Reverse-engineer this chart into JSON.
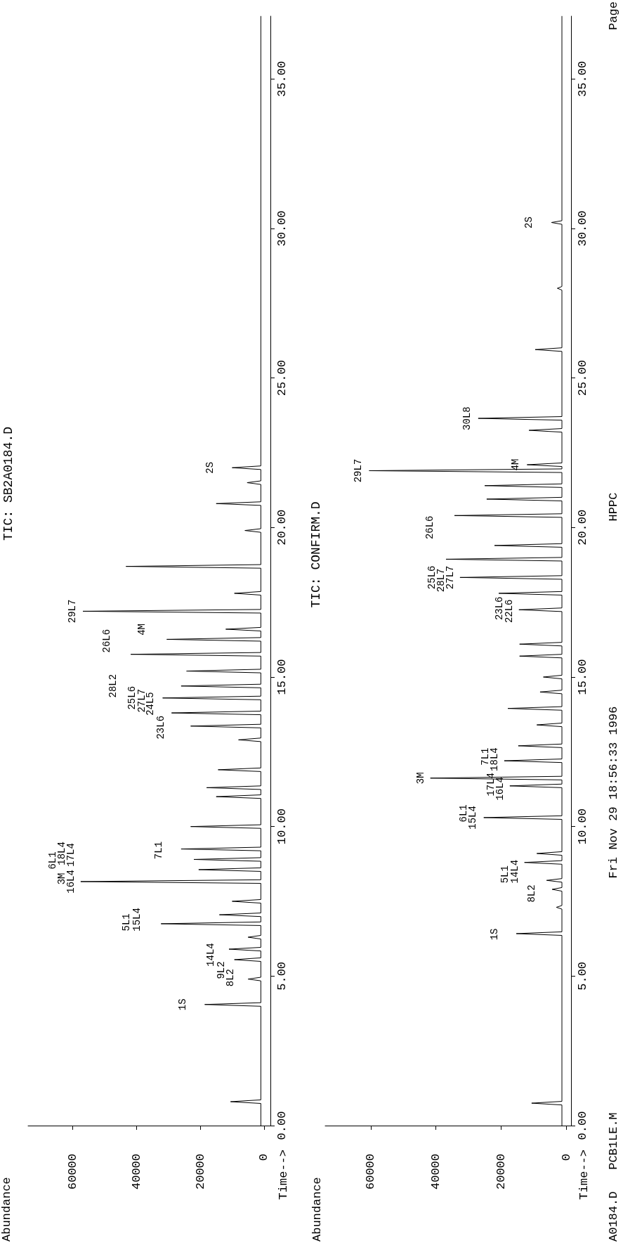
{
  "chart_data": [
    {
      "type": "line",
      "title": "TIC: SB2A0184.D",
      "ylabel": "Time-->",
      "xlim": [
        74000,
        -2000
      ],
      "xticks": [
        0,
        20000,
        40000,
        60000
      ],
      "ylim": [
        0,
        37.1
      ],
      "yticks": [
        {
          "value": 0,
          "label": "0.00"
        },
        {
          "value": 5,
          "label": "5.00"
        },
        {
          "value": 10,
          "label": "10.00"
        },
        {
          "value": 15,
          "label": "15.00"
        },
        {
          "value": 20,
          "label": "20.00"
        },
        {
          "value": 25,
          "label": "25.00"
        },
        {
          "value": 30,
          "label": "30.00"
        },
        {
          "value": 35,
          "label": "35.00"
        }
      ],
      "marker": "none",
      "line_style": "solid",
      "series": [
        {
          "color": "#000000",
          "x": [
            1000,
            1000,
            10500,
            1000,
            1000,
            18600,
            1000,
            1000,
            5000,
            1000,
            1000,
            9300,
            1000,
            1000,
            11000,
            1000,
            1000,
            5000,
            1000,
            1000,
            32300,
            1000,
            1000,
            14000,
            1000,
            1000,
            10000,
            1000,
            1000,
            57500,
            1000,
            1000,
            20500,
            1000,
            1000,
            22000,
            1000,
            1000,
            26000,
            1000,
            1000,
            23000,
            1000,
            1000,
            15000,
            1000,
            1000,
            18000,
            1000,
            1000,
            14400,
            1000,
            1000,
            8000,
            1000,
            1000,
            23000,
            1000,
            1000,
            29000,
            1000,
            1000,
            31800,
            1000,
            1000,
            26000,
            1000,
            1000,
            24300,
            1000,
            1000,
            41800,
            1000,
            1000,
            30500,
            1000,
            1000,
            12000,
            1000,
            1000,
            56800,
            1000,
            1000,
            9300,
            1000,
            1000,
            43300,
            1000,
            1000,
            6000,
            1000,
            1000,
            15000,
            1000,
            1000,
            5300,
            1000,
            1000,
            10000,
            1000,
            1000
          ],
          "values": [
            0,
            0.74,
            0.8,
            0.86,
            3.99,
            4.05,
            4.11,
            4.84,
            4.9,
            4.96,
            5.49,
            5.55,
            5.61,
            5.84,
            5.9,
            5.96,
            6.24,
            6.3,
            6.36,
            6.69,
            6.75,
            6.81,
            6.99,
            7.05,
            7.11,
            7.44,
            7.5,
            7.56,
            8.1,
            8.16,
            8.22,
            8.5,
            8.56,
            8.62,
            8.84,
            8.9,
            8.96,
            9.19,
            9.25,
            9.31,
            9.94,
            10.0,
            10.06,
            10.94,
            11.0,
            11.06,
            11.24,
            11.3,
            11.36,
            11.84,
            11.9,
            11.96,
            12.84,
            12.9,
            12.96,
            13.3,
            13.36,
            13.42,
            13.74,
            13.8,
            13.86,
            14.24,
            14.3,
            14.36,
            14.64,
            14.7,
            14.76,
            15.14,
            15.2,
            15.26,
            15.7,
            15.76,
            15.82,
            16.2,
            16.26,
            16.32,
            16.54,
            16.6,
            16.66,
            17.14,
            17.2,
            17.26,
            17.74,
            17.8,
            17.86,
            18.64,
            18.7,
            18.76,
            19.84,
            19.9,
            19.96,
            20.74,
            20.8,
            20.86,
            21.44,
            21.5,
            21.56,
            21.94,
            22.0,
            22.06,
            37.1
          ]
        }
      ],
      "annotations": [
        {
          "text": "1S",
          "x": 18600,
          "y": 4.05
        },
        {
          "text": "8L2",
          "x": 5000,
          "y": 4.9
        },
        {
          "text": "9L2",
          "x": 9300,
          "y": 5.55
        },
        {
          "text": "14L4",
          "x": 11000,
          "y": 5.9
        },
        {
          "text": "5L1",
          "x": 32300,
          "y": 6.75
        },
        {
          "text": "15L4",
          "x": 32300,
          "y": 6.75
        },
        {
          "text": "16L4",
          "x": 57500,
          "y": 8.16
        },
        {
          "text": "3M",
          "x": 57500,
          "y": 8.16
        },
        {
          "text": "17L4",
          "x": 57500,
          "y": 8.16
        },
        {
          "text": "18L4",
          "x": 57500,
          "y": 8.16
        },
        {
          "text": "6L1",
          "x": 57500,
          "y": 8.16
        },
        {
          "text": "7L1",
          "x": 26000,
          "y": 9.25
        },
        {
          "text": "23L6",
          "x": 23000,
          "y": 13.36
        },
        {
          "text": "24L5",
          "x": 29000,
          "y": 13.8
        },
        {
          "text": "27L7",
          "x": 31800,
          "y": 14.3
        },
        {
          "text": "25L6",
          "x": 31800,
          "y": 14.3
        },
        {
          "text": "28L2",
          "x": 41800,
          "y": 15.76
        },
        {
          "text": "26L6",
          "x": 41800,
          "y": 15.76
        },
        {
          "text": "4M",
          "x": 30500,
          "y": 16.26
        },
        {
          "text": "29L7",
          "x": 56800,
          "y": 17.2
        },
        {
          "text": "2S",
          "x": 10000,
          "y": 22.0
        },
        "Abundance"
      ]
    },
    {
      "type": "line",
      "title": "TIC: CONFIRM.D",
      "ylabel": "Time-->",
      "xlim": [
        74000,
        -1500
      ],
      "xticks": [
        0,
        20000,
        40000,
        60000
      ],
      "ylim": [
        0,
        37.1
      ],
      "yticks": [
        {
          "value": 0,
          "label": "0.00"
        },
        {
          "value": 5,
          "label": "5.00"
        },
        {
          "value": 10,
          "label": "10.00"
        },
        {
          "value": 15,
          "label": "15.00"
        },
        {
          "value": 20,
          "label": "20.00"
        },
        {
          "value": 25,
          "label": "25.00"
        },
        {
          "value": 30,
          "label": "30.00"
        },
        {
          "value": 35,
          "label": "35.00"
        }
      ],
      "marker": "none",
      "line_style": "solid",
      "series": [
        {
          "color": "#000000",
          "x": [
            1300,
            1300,
            10600,
            1300,
            1300,
            15300,
            1300,
            1300,
            3000,
            1300,
            1300,
            4300,
            1300,
            1300,
            6000,
            1300,
            1300,
            12800,
            1300,
            1300,
            9000,
            1300,
            1300,
            25300,
            1300,
            1300,
            17300,
            1300,
            1300,
            41700,
            1300,
            1300,
            19000,
            1300,
            1300,
            14700,
            1300,
            1300,
            9000,
            1300,
            1300,
            17900,
            1300,
            1300,
            8000,
            1300,
            1300,
            7000,
            1300,
            1300,
            14300,
            1300,
            1300,
            14300,
            1300,
            1300,
            14500,
            1300,
            1300,
            20700,
            1300,
            1300,
            32600,
            1300,
            1300,
            36900,
            1300,
            1300,
            22000,
            1300,
            1300,
            34300,
            1300,
            1300,
            24400,
            1300,
            1300,
            25000,
            1300,
            1300,
            60500,
            1300,
            1300,
            12000,
            1300,
            1300,
            11400,
            1300,
            1300,
            27000,
            1300,
            1300,
            9500,
            1300,
            1300,
            2700,
            1300,
            1300,
            4500,
            1300,
            1300
          ],
          "values": [
            0,
            0.69,
            0.75,
            0.81,
            6.36,
            6.42,
            6.48,
            7.24,
            7.3,
            7.36,
            7.84,
            7.9,
            7.96,
            8.14,
            8.2,
            8.26,
            8.74,
            8.8,
            8.86,
            9.04,
            9.1,
            9.16,
            10.24,
            10.3,
            10.36,
            11.3,
            11.36,
            11.42,
            11.56,
            11.62,
            11.68,
            12.14,
            12.2,
            12.26,
            12.64,
            12.7,
            12.76,
            13.34,
            13.4,
            13.46,
            13.89,
            13.95,
            14.01,
            14.44,
            14.5,
            14.56,
            14.94,
            15.0,
            15.06,
            15.64,
            15.7,
            15.76,
            16.04,
            16.1,
            16.16,
            17.19,
            17.25,
            17.31,
            17.74,
            17.8,
            17.86,
            18.27,
            18.33,
            18.39,
            18.88,
            18.94,
            19.0,
            19.34,
            19.4,
            19.46,
            20.34,
            20.4,
            20.46,
            20.89,
            20.95,
            21.01,
            21.34,
            21.4,
            21.46,
            21.84,
            21.9,
            21.96,
            22.04,
            22.1,
            22.16,
            23.19,
            23.25,
            23.31,
            23.59,
            23.65,
            23.71,
            25.89,
            25.95,
            26.01,
            27.94,
            28.0,
            28.06,
            30.14,
            30.2,
            30.26,
            37.1
          ]
        }
      ],
      "annotations": [
        {
          "text": "1S",
          "x": 15300,
          "y": 6.42
        },
        {
          "text": "8L2",
          "x": 4300,
          "y": 7.9
        },
        {
          "text": "14L4",
          "x": 12800,
          "y": 8.8
        },
        {
          "text": "5L1",
          "x": 12800,
          "y": 8.8
        },
        {
          "text": "15L4",
          "x": 25300,
          "y": 10.3
        },
        {
          "text": "6L1",
          "x": 25300,
          "y": 10.3
        },
        {
          "text": "16L4",
          "x": 17300,
          "y": 11.36
        },
        {
          "text": "17L4",
          "x": 17300,
          "y": 11.36
        },
        {
          "text": "3M",
          "x": 41700,
          "y": 11.62
        },
        {
          "text": "18L4",
          "x": 19000,
          "y": 12.2
        },
        {
          "text": "7L1",
          "x": 19000,
          "y": 12.2
        },
        {
          "text": "22L6",
          "x": 14500,
          "y": 17.25
        },
        {
          "text": "23L6",
          "x": 14500,
          "y": 17.25
        },
        {
          "text": "27L7",
          "x": 32600,
          "y": 18.33
        },
        {
          "text": "28L7",
          "x": 32600,
          "y": 18.33
        },
        {
          "text": "25L6",
          "x": 32600,
          "y": 18.33
        },
        {
          "text": "26L6",
          "x": 34300,
          "y": 20.4
        },
        {
          "text": "29L7",
          "x": 60500,
          "y": 21.9
        },
        {
          "text": "4M",
          "x": 12000,
          "y": 22.1
        },
        {
          "text": "30L8",
          "x": 27000,
          "y": 23.65
        },
        {
          "text": "2S",
          "x": 4500,
          "y": 30.2
        },
        "Abundance",
        "A0184.D",
        "PCB1LE.M",
        "Fri Nov 29 18:56:33 1996",
        "HPPC",
        "Page"
      ]
    }
  ]
}
